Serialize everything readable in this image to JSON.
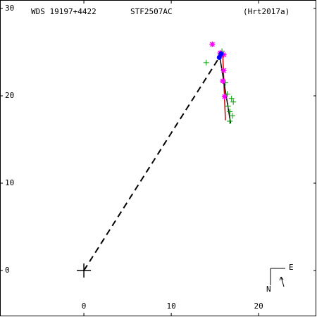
{
  "chart_data": {
    "type": "scatter",
    "labels": [
      "WDS 19197+4422",
      "STF2507AC",
      "(Hrt2017a)"
    ],
    "compass": {
      "east": "E",
      "north": "N"
    },
    "xlim": [
      -9.6,
      26.6
    ],
    "ylim": [
      -5.24,
      30.97
    ],
    "xticks": [
      0,
      10,
      20
    ],
    "yticks": [
      0,
      10,
      20,
      30
    ],
    "series": [
      {
        "mode": "line",
        "dash": true,
        "color": "#000000",
        "x": [
          0,
          15.5
        ],
        "y": [
          0,
          24.4
        ]
      },
      {
        "mode": "line",
        "color": "#cc0000",
        "x": [
          15.9,
          16.2
        ],
        "y": [
          24.6,
          17.2
        ]
      },
      {
        "mode": "line",
        "color": "#000000",
        "x": [
          15.5,
          16.8
        ],
        "y": [
          24.8,
          16.85
        ]
      },
      {
        "mode": "marker",
        "marker": "plus",
        "color": "#009900",
        "x": [
          14.0,
          15.8,
          16.2,
          16.4,
          16.5,
          16.7,
          16.9,
          17.1,
          17.0,
          16.7
        ],
        "y": [
          23.8,
          25.1,
          21.5,
          20.2,
          18.8,
          18.2,
          19.7,
          19.3,
          17.7,
          17.1
        ]
      },
      {
        "mode": "marker",
        "marker": "star",
        "color": "#ff00ff",
        "x": [
          14.7,
          15.6,
          16.0,
          16.0,
          15.9,
          16.1
        ],
        "y": [
          25.9,
          24.9,
          24.7,
          22.9,
          21.7,
          19.9
        ]
      },
      {
        "mode": "marker",
        "marker": "dot",
        "color": "#0000ff",
        "x": [
          15.5,
          15.7
        ],
        "y": [
          24.4,
          24.8
        ]
      },
      {
        "mode": "marker",
        "marker": "big-plus",
        "color": "#000000",
        "x": [
          0
        ],
        "y": [
          0
        ]
      }
    ]
  }
}
